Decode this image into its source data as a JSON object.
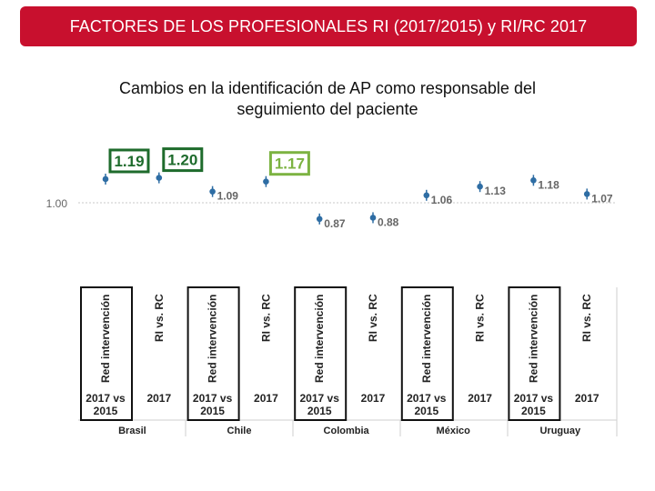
{
  "header": {
    "title": "FACTORES DE LOS PROFESIONALES RI (2017/2015) y RI/RC 2017",
    "subtitle_line1": "Cambios en la identificación de AP como responsable del",
    "subtitle_line2": "seguimiento del paciente"
  },
  "colors": {
    "title_bg": "#c8102e",
    "point": "#2e6da4",
    "highlight_dark_green": "#1e6b2c",
    "highlight_light_green": "#7cb342",
    "group_box": "#111111"
  },
  "chart_data": {
    "type": "scatter",
    "reference_value": 1.0,
    "reference_label": "1.00",
    "categories": [
      {
        "country": "Brasil",
        "rotated": "Red intervención",
        "period": "2017 vs 2015",
        "value": 1.19,
        "label": "1.19",
        "highlight": "dark-green",
        "boxed": true
      },
      {
        "country": "Brasil",
        "rotated": "RI vs. RC",
        "period": "2017",
        "value": 1.2,
        "label": "1.20",
        "highlight": "dark-green",
        "boxed": false
      },
      {
        "country": "Chile",
        "rotated": "Red intervención",
        "period": "2017 vs 2015",
        "value": 1.09,
        "label": "1.09",
        "highlight": "none",
        "boxed": true
      },
      {
        "country": "Chile",
        "rotated": "RI vs. RC",
        "period": "2017",
        "value": 1.17,
        "label": "1.17",
        "highlight": "light-green",
        "boxed": false
      },
      {
        "country": "Colombia",
        "rotated": "Red intervención",
        "period": "2017 vs 2015",
        "value": 0.87,
        "label": "0.87",
        "highlight": "none",
        "boxed": true
      },
      {
        "country": "Colombia",
        "rotated": "RI vs. RC",
        "period": "2017",
        "value": 0.88,
        "label": "0.88",
        "highlight": "none",
        "boxed": false
      },
      {
        "country": "México",
        "rotated": "Red intervención",
        "period": "2017 vs 2015",
        "value": 1.06,
        "label": "1.06",
        "highlight": "none",
        "boxed": true
      },
      {
        "country": "México",
        "rotated": "RI vs. RC",
        "period": "2017",
        "value": 1.13,
        "label": "1.13",
        "highlight": "none",
        "boxed": false
      },
      {
        "country": "Uruguay",
        "rotated": "Red intervención",
        "period": "2017 vs 2015",
        "value": 1.18,
        "label": "1.18",
        "highlight": "none",
        "boxed": true
      },
      {
        "country": "Uruguay",
        "rotated": "RI vs. RC",
        "period": "2017",
        "value": 1.07,
        "label": "1.07",
        "highlight": "none",
        "boxed": false
      }
    ],
    "countries": [
      "Brasil",
      "Chile",
      "Colombia",
      "México",
      "Uruguay"
    ]
  }
}
